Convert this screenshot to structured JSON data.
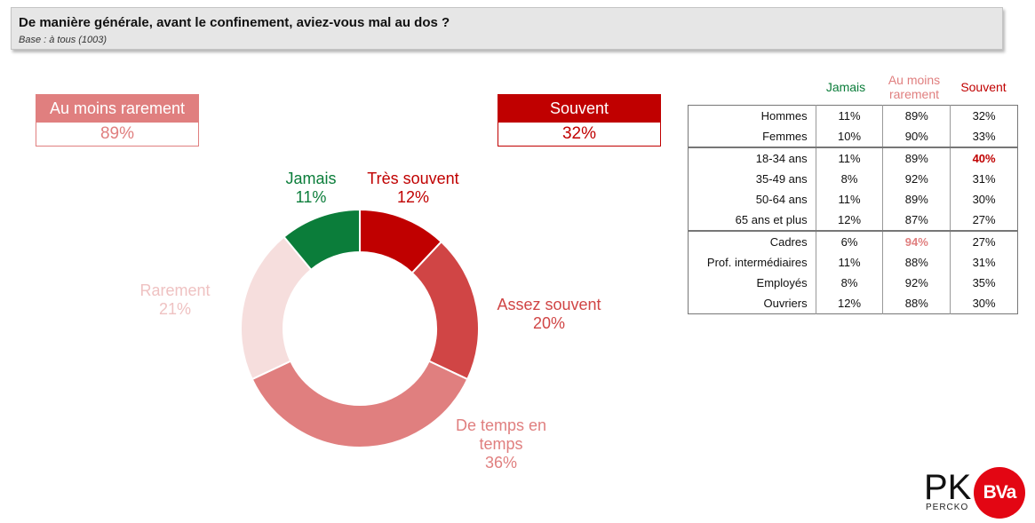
{
  "header": {
    "title": "De manière générale, avant le confinement, aviez-vous mal au dos ?",
    "base": "Base : à tous (1003)"
  },
  "kpi_left": {
    "label": "Au moins rarement",
    "value": "89%"
  },
  "kpi_right": {
    "label": "Souvent",
    "value": "32%"
  },
  "colors": {
    "tres_souvent": "#c00000",
    "assez_souvent": "#d04545",
    "de_temps_en_temps": "#e07f7f",
    "rarement": "#f6dedd",
    "jamais": "#0b7d3a"
  },
  "chart_data": {
    "type": "pie",
    "donut": true,
    "slices": [
      {
        "label": "Très souvent",
        "value": 12,
        "display": "12%"
      },
      {
        "label": "Assez souvent",
        "value": 20,
        "display": "20%"
      },
      {
        "label": "De temps en temps",
        "value": 36,
        "display": "36%"
      },
      {
        "label": "Rarement",
        "value": 21,
        "display": "21%"
      },
      {
        "label": "Jamais",
        "value": 11,
        "display": "11%"
      }
    ]
  },
  "table": {
    "headers": {
      "jamais": "Jamais",
      "au_moins_rarement": "Au moins rarement",
      "souvent": "Souvent"
    },
    "groups": [
      {
        "rows": [
          {
            "label": "Hommes",
            "jamais": "11%",
            "au_moins_rarement": "89%",
            "souvent": "32%"
          },
          {
            "label": "Femmes",
            "jamais": "10%",
            "au_moins_rarement": "90%",
            "souvent": "33%"
          }
        ]
      },
      {
        "rows": [
          {
            "label": "18-34 ans",
            "jamais": "11%",
            "au_moins_rarement": "89%",
            "souvent": "40%"
          },
          {
            "label": "35-49 ans",
            "jamais": "8%",
            "au_moins_rarement": "92%",
            "souvent": "31%"
          },
          {
            "label": "50-64 ans",
            "jamais": "11%",
            "au_moins_rarement": "89%",
            "souvent": "30%"
          },
          {
            "label": "65 ans et plus",
            "jamais": "12%",
            "au_moins_rarement": "87%",
            "souvent": "27%"
          }
        ]
      },
      {
        "rows": [
          {
            "label": "Cadres",
            "jamais": "6%",
            "au_moins_rarement": "94%",
            "souvent": "27%"
          },
          {
            "label": "Prof. intermédiaires",
            "jamais": "11%",
            "au_moins_rarement": "88%",
            "souvent": "31%"
          },
          {
            "label": "Employés",
            "jamais": "8%",
            "au_moins_rarement": "92%",
            "souvent": "35%"
          },
          {
            "label": "Ouvriers",
            "jamais": "12%",
            "au_moins_rarement": "88%",
            "souvent": "30%"
          }
        ]
      }
    ]
  },
  "logos": {
    "percko_mark": "PK",
    "percko": "PERCKO",
    "bva": "BVa"
  }
}
